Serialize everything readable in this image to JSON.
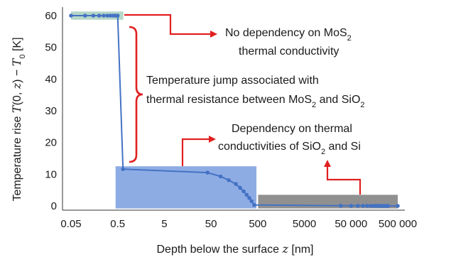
{
  "chart_data": {
    "type": "line",
    "x_scale": "log",
    "xlim": [
      0.05,
      500000
    ],
    "ylim": [
      0,
      60
    ],
    "grid": false,
    "x_ticks": [
      "0.05",
      "0.5",
      "5",
      "50",
      "500",
      "5000",
      "50 000",
      "500 000"
    ],
    "y_ticks": [
      "0",
      "10",
      "20",
      "30",
      "40",
      "50",
      "60"
    ],
    "ylabel": "Temperature rise 𝑇(0, 𝑧) − 𝑇₀ [K]",
    "xlabel": "Depth below the surface 𝑧 [nm]",
    "series": [
      {
        "color": "#4472c4",
        "x": [
          0.05,
          0.1,
          0.15,
          0.2,
          0.25,
          0.3,
          0.35,
          0.4,
          0.45,
          0.5,
          0.65,
          42,
          80,
          120,
          170,
          210,
          250,
          290,
          330,
          370,
          420,
          30000,
          50000,
          70000,
          90000,
          110000,
          130000,
          150000,
          170000,
          190000,
          210000,
          230000,
          250000,
          270000,
          290000,
          310000,
          500000
        ],
        "y": [
          60,
          60,
          60,
          60,
          60,
          60,
          60,
          60,
          60,
          60,
          11.6,
          10.5,
          9.3,
          8.1,
          6.9,
          5.7,
          4.6,
          3.5,
          2.5,
          1.5,
          0.3,
          0.06,
          0.05,
          0.05,
          0.04,
          0.04,
          0.03,
          0.03,
          0.02,
          0.02,
          0.02,
          0.01,
          0.01,
          0.01,
          0.01,
          0.01,
          0
        ]
      }
    ],
    "regions": [
      {
        "name": "mos2",
        "x0": 0.05,
        "x1": 0.66,
        "y0": 58.7,
        "y1": 61.3,
        "color": "#b6d7c7"
      },
      {
        "name": "sio2",
        "x0": 0.45,
        "x1": 470,
        "y0": -0.8,
        "y1": 12.5,
        "color": "#7a9edf"
      },
      {
        "name": "si",
        "x0": 510,
        "x1": 500000,
        "y0": -0.8,
        "y1": 3.5,
        "color": "#909090"
      }
    ],
    "annotations": {
      "no_dependency_line1": "No dependency on MoS",
      "no_dependency_line2": "thermal conductivity",
      "temperature_jump_line1": "Temperature jump associated with",
      "temperature_jump_line2a": "thermal resistance between MoS",
      "temperature_jump_line2b": " and SiO",
      "dependency_line1": "Dependency on thermal",
      "dependency_line2a": "conductivities of SiO",
      "dependency_line2b": " and Si",
      "subscript": "2"
    },
    "accent_color": "#e02020"
  },
  "labels": {
    "ylabel_prefix": "Temperature rise ",
    "ylabel_T": "T",
    "ylabel_args": "(0, ",
    "ylabel_z": "z",
    "ylabel_close": ") − ",
    "ylabel_T0": "T",
    "ylabel_0": "0",
    "ylabel_unit": " [K]",
    "xlabel_prefix": "Depth below the surface ",
    "xlabel_z": "z",
    "xlabel_unit": " [nm]"
  }
}
